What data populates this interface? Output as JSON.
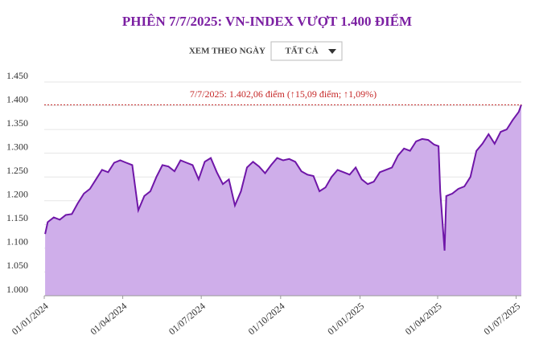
{
  "header": {
    "control_label": "XEM THEO NGÀY",
    "dropdown": "TẤT CẢ"
  },
  "chart_data": {
    "type": "area",
    "title": "PHIÊN 7/7/2025: VN-INDEX VƯỢT 1.400 ĐIỂM",
    "line_color": "#6f16a8",
    "fill_color": "#cfaeea",
    "x": [
      "2024-01-02",
      "2024-01-05",
      "2024-01-12",
      "2024-01-19",
      "2024-01-26",
      "2024-02-02",
      "2024-02-09",
      "2024-02-16",
      "2024-02-23",
      "2024-03-01",
      "2024-03-08",
      "2024-03-15",
      "2024-03-22",
      "2024-03-29",
      "2024-04-05",
      "2024-04-12",
      "2024-04-19",
      "2024-04-26",
      "2024-05-03",
      "2024-05-10",
      "2024-05-17",
      "2024-05-24",
      "2024-05-31",
      "2024-06-07",
      "2024-06-14",
      "2024-06-21",
      "2024-06-28",
      "2024-07-05",
      "2024-07-12",
      "2024-07-19",
      "2024-07-26",
      "2024-08-02",
      "2024-08-09",
      "2024-08-16",
      "2024-08-23",
      "2024-08-30",
      "2024-09-06",
      "2024-09-13",
      "2024-09-20",
      "2024-09-27",
      "2024-10-04",
      "2024-10-11",
      "2024-10-18",
      "2024-10-25",
      "2024-11-01",
      "2024-11-08",
      "2024-11-15",
      "2024-11-22",
      "2024-11-29",
      "2024-12-06",
      "2024-12-13",
      "2024-12-20",
      "2024-12-27",
      "2025-01-03",
      "2025-01-10",
      "2025-01-17",
      "2025-01-24",
      "2025-02-07",
      "2025-02-14",
      "2025-02-21",
      "2025-02-28",
      "2025-03-07",
      "2025-03-14",
      "2025-03-21",
      "2025-03-28",
      "2025-04-02",
      "2025-04-04",
      "2025-04-09",
      "2025-04-11",
      "2025-04-18",
      "2025-04-25",
      "2025-05-02",
      "2025-05-09",
      "2025-05-16",
      "2025-05-23",
      "2025-05-30",
      "2025-06-06",
      "2025-06-13",
      "2025-06-20",
      "2025-06-27",
      "2025-07-04",
      "2025-07-07"
    ],
    "values": [
      1130,
      1155,
      1165,
      1160,
      1170,
      1172,
      1195,
      1215,
      1225,
      1245,
      1265,
      1260,
      1280,
      1285,
      1280,
      1275,
      1180,
      1210,
      1220,
      1250,
      1275,
      1272,
      1262,
      1285,
      1280,
      1275,
      1245,
      1282,
      1290,
      1260,
      1235,
      1245,
      1190,
      1220,
      1270,
      1282,
      1272,
      1258,
      1275,
      1290,
      1285,
      1288,
      1282,
      1262,
      1255,
      1252,
      1220,
      1228,
      1250,
      1265,
      1260,
      1255,
      1270,
      1245,
      1235,
      1240,
      1260,
      1270,
      1295,
      1310,
      1305,
      1325,
      1330,
      1328,
      1318,
      1315,
      1220,
      1095,
      1210,
      1215,
      1225,
      1230,
      1250,
      1305,
      1320,
      1340,
      1320,
      1345,
      1350,
      1370,
      1387,
      1402.06
    ],
    "xlim": [
      "2024-01-01",
      "2025-07-07"
    ],
    "xticks": [
      {
        "value": "2024-01-01",
        "label": "01/01/2024"
      },
      {
        "value": "2024-04-01",
        "label": "01/04/2024"
      },
      {
        "value": "2024-07-01",
        "label": "01/07/2024"
      },
      {
        "value": "2024-10-01",
        "label": "01/10/2024"
      },
      {
        "value": "2025-01-01",
        "label": "01/01/2025"
      },
      {
        "value": "2025-04-01",
        "label": "01/04/2025"
      },
      {
        "value": "2025-07-01",
        "label": "01/07/2025"
      }
    ],
    "ylim": [
      1000,
      1450
    ],
    "yticks": [
      {
        "value": 1000,
        "label": "1.000"
      },
      {
        "value": 1050,
        "label": "1.050"
      },
      {
        "value": 1100,
        "label": "1.100"
      },
      {
        "value": 1150,
        "label": "1.150"
      },
      {
        "value": 1200,
        "label": "1.200"
      },
      {
        "value": 1250,
        "label": "1.250"
      },
      {
        "value": 1300,
        "label": "1.300"
      },
      {
        "value": 1350,
        "label": "1.350"
      },
      {
        "value": 1400,
        "label": "1.400"
      },
      {
        "value": 1450,
        "label": "1.450"
      }
    ],
    "reference_line": {
      "value": 1402.06,
      "label": "7/7/2025: 1.402,06 điểm (↑15,09 điểm; ↑1,09%)",
      "color": "#c62828"
    }
  }
}
